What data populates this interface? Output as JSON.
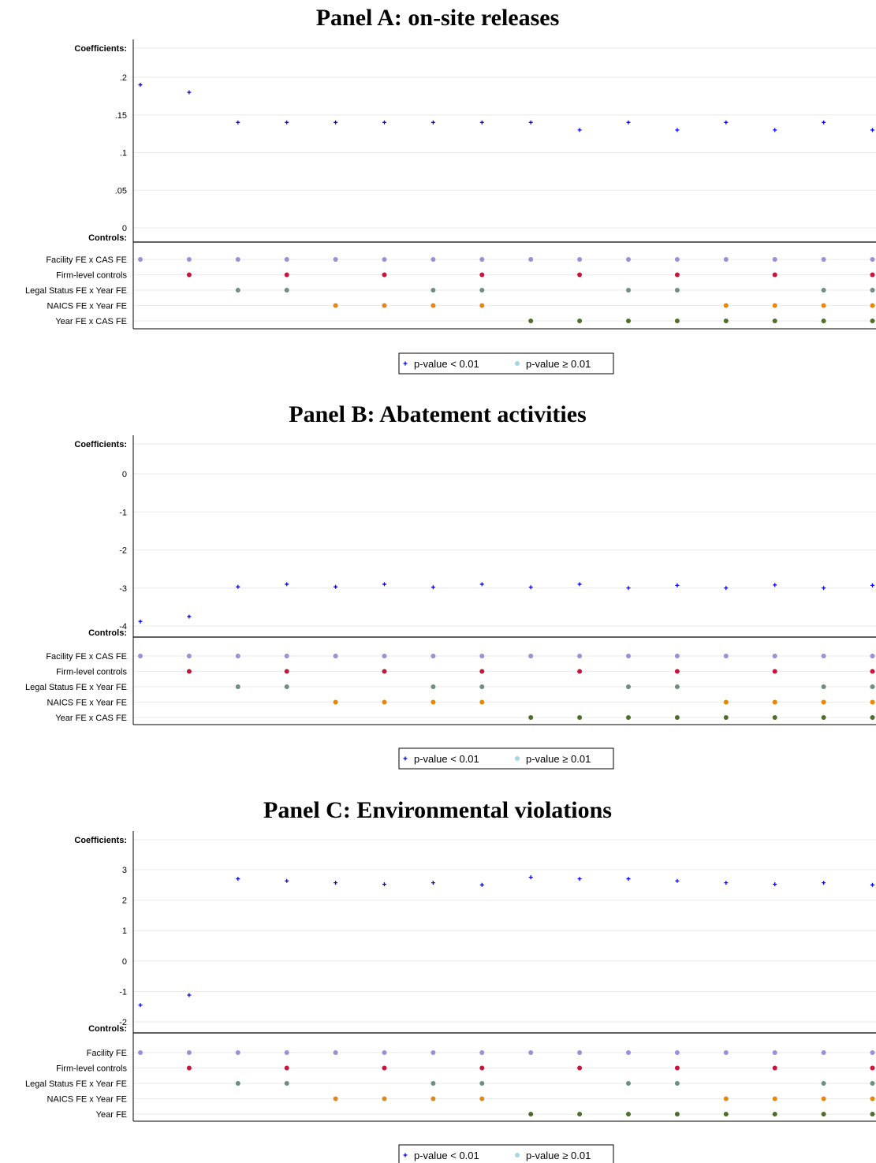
{
  "chart_data": [
    {
      "type": "scatter",
      "title": "Panel A: on-site releases",
      "coef_label": "Coefficients:",
      "controls_label": "Controls:",
      "ylim": [
        -0.01,
        0.21
      ],
      "yticks": [
        {
          "v": 0.2,
          "label": ".2"
        },
        {
          "v": 0.15,
          "label": ".15"
        },
        {
          "v": 0.1,
          "label": ".1"
        },
        {
          "v": 0.05,
          "label": ".05"
        },
        {
          "v": 0,
          "label": "0"
        }
      ],
      "values": [
        0.19,
        0.18,
        0.14,
        0.14,
        0.14,
        0.14,
        0.14,
        0.14,
        0.14,
        0.13,
        0.14,
        0.13,
        0.14,
        0.13,
        0.14,
        0.13
      ],
      "controls": [
        {
          "label": "Facility FE x CAS FE",
          "color": "#9b8fd6",
          "cols": [
            1,
            1,
            1,
            1,
            1,
            1,
            1,
            1,
            1,
            1,
            1,
            1,
            1,
            1,
            1,
            1
          ]
        },
        {
          "label": "Firm-level controls",
          "color": "#c8163a",
          "cols": [
            0,
            1,
            0,
            1,
            0,
            1,
            0,
            1,
            0,
            1,
            0,
            1,
            0,
            1,
            0,
            1
          ]
        },
        {
          "label": "Legal Status FE x Year FE",
          "color": "#6e8f7d",
          "cols": [
            0,
            0,
            1,
            1,
            0,
            0,
            1,
            1,
            0,
            0,
            1,
            1,
            0,
            0,
            1,
            1
          ]
        },
        {
          "label": "NAICS FE x Year FE",
          "color": "#e8860a",
          "cols": [
            0,
            0,
            0,
            0,
            1,
            1,
            1,
            1,
            0,
            0,
            0,
            0,
            1,
            1,
            1,
            1
          ]
        },
        {
          "label": "Year FE x CAS FE",
          "color": "#4f6e2b",
          "cols": [
            0,
            0,
            0,
            0,
            0,
            0,
            0,
            0,
            1,
            1,
            1,
            1,
            1,
            1,
            1,
            1
          ]
        }
      ],
      "legend": [
        "p-value < 0.01",
        "p-value ≥ 0.01"
      ]
    },
    {
      "type": "scatter",
      "title": "Panel B: Abatement activities",
      "coef_label": "Coefficients:",
      "controls_label": "Controls:",
      "ylim": [
        -4.3,
        0.4
      ],
      "yticks": [
        {
          "v": 0,
          "label": "0"
        },
        {
          "v": -1,
          "label": "-1"
        },
        {
          "v": -2,
          "label": "-2"
        },
        {
          "v": -3,
          "label": "-3"
        },
        {
          "v": -4,
          "label": "-4"
        }
      ],
      "values": [
        -3.88,
        -3.75,
        -2.97,
        -2.9,
        -2.97,
        -2.9,
        -2.98,
        -2.9,
        -2.98,
        -2.9,
        -3.0,
        -2.93,
        -3.0,
        -2.92,
        -3.0,
        -2.93
      ],
      "controls": [
        {
          "label": "Facility FE x CAS FE",
          "color": "#9b8fd6",
          "cols": [
            1,
            1,
            1,
            1,
            1,
            1,
            1,
            1,
            1,
            1,
            1,
            1,
            1,
            1,
            1,
            1
          ]
        },
        {
          "label": "Firm-level controls",
          "color": "#c8163a",
          "cols": [
            0,
            1,
            0,
            1,
            0,
            1,
            0,
            1,
            0,
            1,
            0,
            1,
            0,
            1,
            0,
            1
          ]
        },
        {
          "label": "Legal Status FE x Year FE",
          "color": "#6e8f7d",
          "cols": [
            0,
            0,
            1,
            1,
            0,
            0,
            1,
            1,
            0,
            0,
            1,
            1,
            0,
            0,
            1,
            1
          ]
        },
        {
          "label": "NAICS FE x Year FE",
          "color": "#e8860a",
          "cols": [
            0,
            0,
            0,
            0,
            1,
            1,
            1,
            1,
            0,
            0,
            0,
            0,
            1,
            1,
            1,
            1
          ]
        },
        {
          "label": "Year FE x CAS FE",
          "color": "#4f6e2b",
          "cols": [
            0,
            0,
            0,
            0,
            0,
            0,
            0,
            0,
            1,
            1,
            1,
            1,
            1,
            1,
            1,
            1
          ]
        }
      ],
      "legend": [
        "p-value < 0.01",
        "p-value ≥ 0.01"
      ]
    },
    {
      "type": "scatter",
      "title": "Panel C: Environmental violations",
      "coef_label": "Coefficients:",
      "controls_label": "Controls:",
      "ylim": [
        -2.3,
        3.9
      ],
      "yticks": [
        {
          "v": 3,
          "label": "3"
        },
        {
          "v": 2,
          "label": "2"
        },
        {
          "v": 1,
          "label": "1"
        },
        {
          "v": 0,
          "label": "0"
        },
        {
          "v": -1,
          "label": "-1"
        },
        {
          "v": -2,
          "label": "-2"
        }
      ],
      "values": [
        -1.45,
        -1.12,
        2.7,
        2.63,
        2.57,
        2.52,
        2.57,
        2.5,
        2.75,
        2.7,
        2.7,
        2.63,
        2.57,
        2.52,
        2.57,
        2.5
      ],
      "controls": [
        {
          "label": "Facility FE",
          "color": "#9b8fd6",
          "cols": [
            1,
            1,
            1,
            1,
            1,
            1,
            1,
            1,
            1,
            1,
            1,
            1,
            1,
            1,
            1,
            1
          ]
        },
        {
          "label": "Firm-level controls",
          "color": "#c8163a",
          "cols": [
            0,
            1,
            0,
            1,
            0,
            1,
            0,
            1,
            0,
            1,
            0,
            1,
            0,
            1,
            0,
            1
          ]
        },
        {
          "label": "Legal Status FE x Year FE",
          "color": "#6e8f7d",
          "cols": [
            0,
            0,
            1,
            1,
            0,
            0,
            1,
            1,
            0,
            0,
            1,
            1,
            0,
            0,
            1,
            1
          ]
        },
        {
          "label": "NAICS FE x Year FE",
          "color": "#e8860a",
          "cols": [
            0,
            0,
            0,
            0,
            1,
            1,
            1,
            1,
            0,
            0,
            0,
            0,
            1,
            1,
            1,
            1
          ]
        },
        {
          "label": "Year FE",
          "color": "#4f6e2b",
          "cols": [
            0,
            0,
            0,
            0,
            0,
            0,
            0,
            0,
            1,
            1,
            1,
            1,
            1,
            1,
            1,
            1
          ]
        }
      ],
      "legend": [
        "p-value < 0.01",
        "p-value ≥ 0.01"
      ]
    }
  ],
  "colors": {
    "significant": "#0000ff",
    "insignificant": "#a6d5e6",
    "gridline": "#eaeaea"
  }
}
